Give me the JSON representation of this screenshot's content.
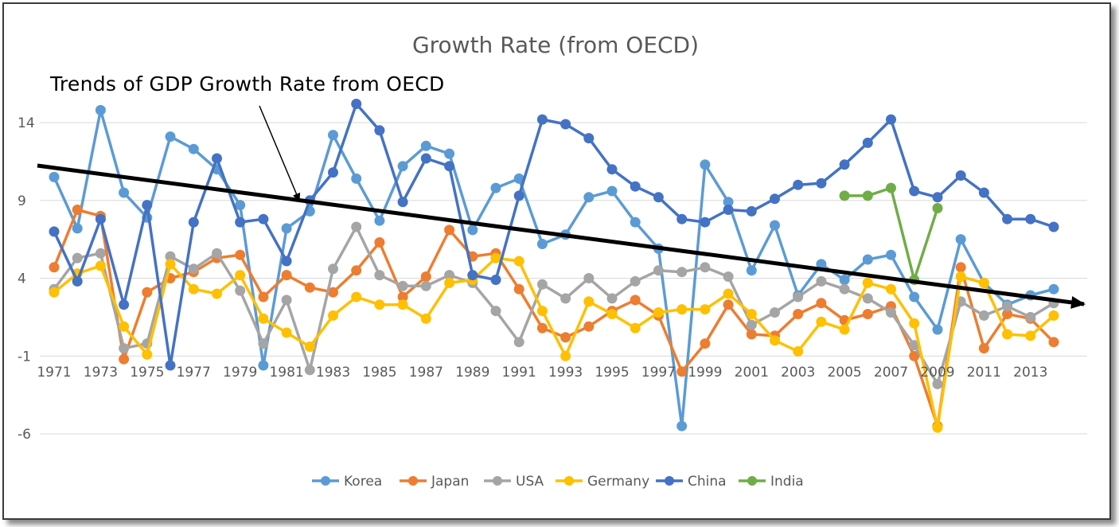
{
  "chart_data": {
    "type": "line",
    "title": "Growth Rate (from OECD)",
    "annotation": "Trends of GDP Growth Rate from OECD",
    "xlabel": "",
    "ylabel": "",
    "x": [
      1971,
      1972,
      1973,
      1974,
      1975,
      1976,
      1977,
      1978,
      1979,
      1980,
      1981,
      1982,
      1983,
      1984,
      1985,
      1986,
      1987,
      1988,
      1989,
      1990,
      1991,
      1992,
      1993,
      1994,
      1995,
      1996,
      1997,
      1998,
      1999,
      2000,
      2001,
      2002,
      2003,
      2004,
      2005,
      2006,
      2007,
      2008,
      2009,
      2010,
      2011,
      2012,
      2013,
      2014
    ],
    "x_tick_labels": [
      "1971",
      "1973",
      "1975",
      "1977",
      "1979",
      "1981",
      "1983",
      "1985",
      "1987",
      "1989",
      "1991",
      "1993",
      "1995",
      "1997",
      "1999",
      "2001",
      "2003",
      "2005",
      "2007",
      "2009",
      "2011",
      "2013"
    ],
    "y_ticks": [
      14,
      9,
      4,
      -1,
      -6
    ],
    "ylim": [
      -6,
      14
    ],
    "grid": true,
    "legend_position": "bottom",
    "series": [
      {
        "name": "Korea",
        "color": "#5B9BD5",
        "values": [
          10.5,
          7.2,
          14.8,
          9.5,
          7.9,
          13.1,
          12.3,
          11.0,
          8.7,
          -1.6,
          7.2,
          8.3,
          13.2,
          10.4,
          7.7,
          11.2,
          12.5,
          12.0,
          7.1,
          9.8,
          10.4,
          6.2,
          6.8,
          9.2,
          9.6,
          7.6,
          5.9,
          -5.5,
          11.3,
          8.9,
          4.5,
          7.4,
          2.9,
          4.9,
          3.9,
          5.2,
          5.5,
          2.8,
          0.7,
          6.5,
          3.7,
          2.3,
          2.9,
          3.3
        ]
      },
      {
        "name": "Japan",
        "color": "#ED7D31",
        "values": [
          4.7,
          8.4,
          8.0,
          -1.2,
          3.1,
          4.0,
          4.4,
          5.3,
          5.5,
          2.8,
          4.2,
          3.4,
          3.1,
          4.5,
          6.3,
          2.8,
          4.1,
          7.1,
          5.4,
          5.6,
          3.3,
          0.8,
          0.2,
          0.9,
          1.9,
          2.6,
          1.6,
          -2.0,
          -0.2,
          2.3,
          0.4,
          0.3,
          1.7,
          2.4,
          1.3,
          1.7,
          2.2,
          -1.0,
          -5.5,
          4.7,
          -0.5,
          1.7,
          1.4,
          -0.1
        ]
      },
      {
        "name": "USA",
        "color": "#A5A5A5",
        "values": [
          3.3,
          5.3,
          5.6,
          -0.5,
          -0.2,
          5.4,
          4.6,
          5.6,
          3.2,
          -0.2,
          2.6,
          -1.9,
          4.6,
          7.3,
          4.2,
          3.5,
          3.5,
          4.2,
          3.7,
          1.9,
          -0.1,
          3.6,
          2.7,
          4.0,
          2.7,
          3.8,
          4.5,
          4.4,
          4.7,
          4.1,
          1.0,
          1.8,
          2.8,
          3.8,
          3.3,
          2.7,
          1.8,
          -0.3,
          -2.8,
          2.5,
          1.6,
          2.2,
          1.5,
          2.4
        ]
      },
      {
        "name": "Germany",
        "color": "#FFC000",
        "values": [
          3.1,
          4.3,
          4.8,
          0.9,
          -0.9,
          4.9,
          3.3,
          3.0,
          4.2,
          1.4,
          0.5,
          -0.4,
          1.6,
          2.8,
          2.3,
          2.3,
          1.4,
          3.7,
          3.9,
          5.3,
          5.1,
          1.9,
          -1.0,
          2.5,
          1.7,
          0.8,
          1.8,
          2.0,
          2.0,
          3.0,
          1.7,
          0.0,
          -0.7,
          1.2,
          0.7,
          3.7,
          3.3,
          1.1,
          -5.6,
          4.1,
          3.7,
          0.4,
          0.3,
          1.6
        ]
      },
      {
        "name": "China",
        "color": "#4472C4",
        "values": [
          7.0,
          3.8,
          7.8,
          2.3,
          8.7,
          -1.6,
          7.6,
          11.7,
          7.6,
          7.8,
          5.1,
          9.0,
          10.8,
          15.2,
          13.5,
          8.9,
          11.7,
          11.2,
          4.2,
          3.9,
          9.3,
          14.2,
          13.9,
          13.0,
          11.0,
          9.9,
          9.2,
          7.8,
          7.6,
          8.4,
          8.3,
          9.1,
          10.0,
          10.1,
          11.3,
          12.7,
          14.2,
          9.6,
          9.2,
          10.6,
          9.5,
          7.8,
          7.8,
          7.3
        ]
      },
      {
        "name": "India",
        "color": "#70AD47",
        "values": [
          null,
          null,
          null,
          null,
          null,
          null,
          null,
          null,
          null,
          null,
          null,
          null,
          null,
          null,
          null,
          null,
          null,
          null,
          null,
          null,
          null,
          null,
          null,
          null,
          null,
          null,
          null,
          null,
          null,
          null,
          null,
          null,
          null,
          null,
          9.3,
          9.3,
          9.8,
          3.9,
          8.5,
          null,
          null,
          null,
          null,
          null
        ]
      }
    ]
  }
}
